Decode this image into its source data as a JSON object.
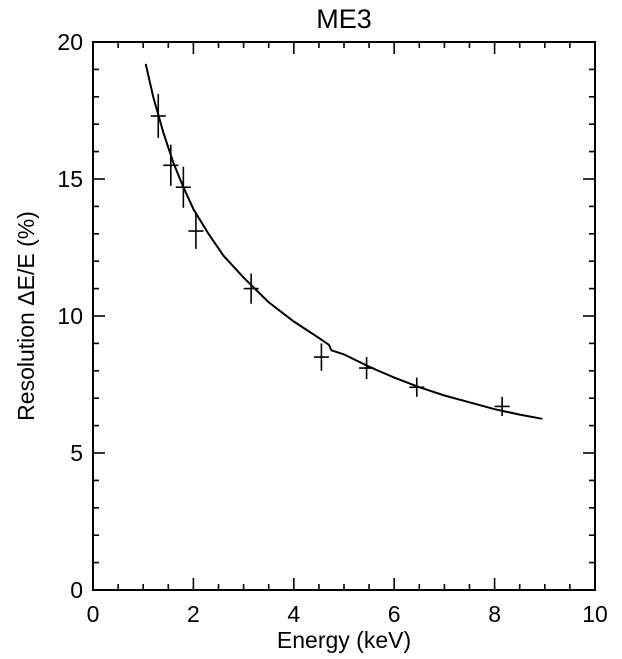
{
  "chart_data": {
    "type": "scatter",
    "title": "ME3",
    "xlabel": "Energy (keV)",
    "ylabel": "Resolution ΔE/E (%)",
    "xlim": [
      0,
      10
    ],
    "ylim": [
      0,
      20
    ],
    "x_ticks": [
      {
        "value": 0,
        "label": "0"
      },
      {
        "value": 2,
        "label": "2"
      },
      {
        "value": 4,
        "label": "4"
      },
      {
        "value": 6,
        "label": "6"
      },
      {
        "value": 8,
        "label": "8"
      },
      {
        "value": 10,
        "label": "10"
      }
    ],
    "y_ticks": [
      {
        "value": 0,
        "label": "0"
      },
      {
        "value": 5,
        "label": "5"
      },
      {
        "value": 10,
        "label": "10"
      },
      {
        "value": 15,
        "label": "15"
      },
      {
        "value": 20,
        "label": "20"
      }
    ],
    "x_minor_step": 0.5,
    "y_minor_step": 1,
    "grid": false,
    "legend": "none",
    "series": [
      {
        "kind": "points-with-error-bars",
        "points": [
          {
            "x": 1.3,
            "y": 17.3,
            "xerr": 0.15,
            "yerr": 0.8
          },
          {
            "x": 1.55,
            "y": 15.5,
            "xerr": 0.15,
            "yerr": 0.75
          },
          {
            "x": 1.8,
            "y": 14.7,
            "xerr": 0.15,
            "yerr": 0.75
          },
          {
            "x": 2.05,
            "y": 13.1,
            "xerr": 0.15,
            "yerr": 0.65
          },
          {
            "x": 3.15,
            "y": 11.0,
            "xerr": 0.15,
            "yerr": 0.55
          },
          {
            "x": 4.55,
            "y": 8.5,
            "xerr": 0.15,
            "yerr": 0.5
          },
          {
            "x": 5.45,
            "y": 8.1,
            "xerr": 0.15,
            "yerr": 0.4
          },
          {
            "x": 6.45,
            "y": 7.4,
            "xerr": 0.15,
            "yerr": 0.35
          },
          {
            "x": 8.15,
            "y": 6.7,
            "xerr": 0.15,
            "yerr": 0.35
          }
        ]
      },
      {
        "kind": "fit-curve",
        "points": [
          {
            "x": 1.05,
            "y": 19.2
          },
          {
            "x": 1.2,
            "y": 18.0
          },
          {
            "x": 1.4,
            "y": 16.7
          },
          {
            "x": 1.6,
            "y": 15.6
          },
          {
            "x": 1.8,
            "y": 14.7
          },
          {
            "x": 2.0,
            "y": 13.9
          },
          {
            "x": 2.3,
            "y": 13.0
          },
          {
            "x": 2.6,
            "y": 12.2
          },
          {
            "x": 3.0,
            "y": 11.4
          },
          {
            "x": 3.5,
            "y": 10.5
          },
          {
            "x": 4.0,
            "y": 9.8
          },
          {
            "x": 4.5,
            "y": 9.2
          },
          {
            "x": 4.7,
            "y": 8.95
          },
          {
            "x": 4.75,
            "y": 8.75
          },
          {
            "x": 5.0,
            "y": 8.6
          },
          {
            "x": 5.5,
            "y": 8.15
          },
          {
            "x": 6.0,
            "y": 7.75
          },
          {
            "x": 6.5,
            "y": 7.4
          },
          {
            "x": 7.0,
            "y": 7.1
          },
          {
            "x": 7.5,
            "y": 6.85
          },
          {
            "x": 8.0,
            "y": 6.6
          },
          {
            "x": 8.5,
            "y": 6.4
          },
          {
            "x": 8.95,
            "y": 6.25
          }
        ]
      }
    ],
    "colors": {
      "ink": "#000000",
      "background": "#ffffff"
    }
  }
}
